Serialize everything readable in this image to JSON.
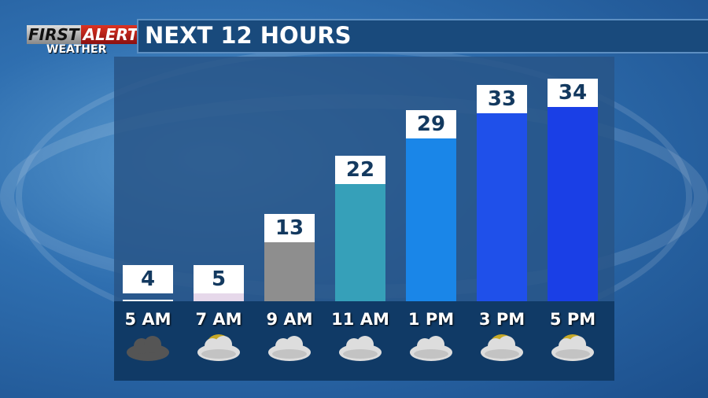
{
  "logo": {
    "first": "FIRST",
    "alert": "ALERT",
    "weather": "WEATHER"
  },
  "header": {
    "title": "NEXT 12 HOURS"
  },
  "chart_data": {
    "type": "bar",
    "categories": [
      "5 AM",
      "7 AM",
      "9 AM",
      "11 AM",
      "1 PM",
      "3 PM",
      "5 PM"
    ],
    "values": [
      4,
      5,
      13,
      22,
      29,
      33,
      34
    ],
    "colors": [
      "#ffffff",
      "#e6d8ea",
      "#8e8e8e",
      "#36a0b9",
      "#1a86e8",
      "#1f50ea",
      "#1a3fe6"
    ],
    "icons": [
      "cloudy-night-icon",
      "partly-sunny-icon",
      "cloudy-icon",
      "cloudy-icon",
      "cloudy-icon",
      "partly-sunny-icon",
      "partly-sunny-icon"
    ],
    "title": "NEXT 12 HOURS"
  }
}
